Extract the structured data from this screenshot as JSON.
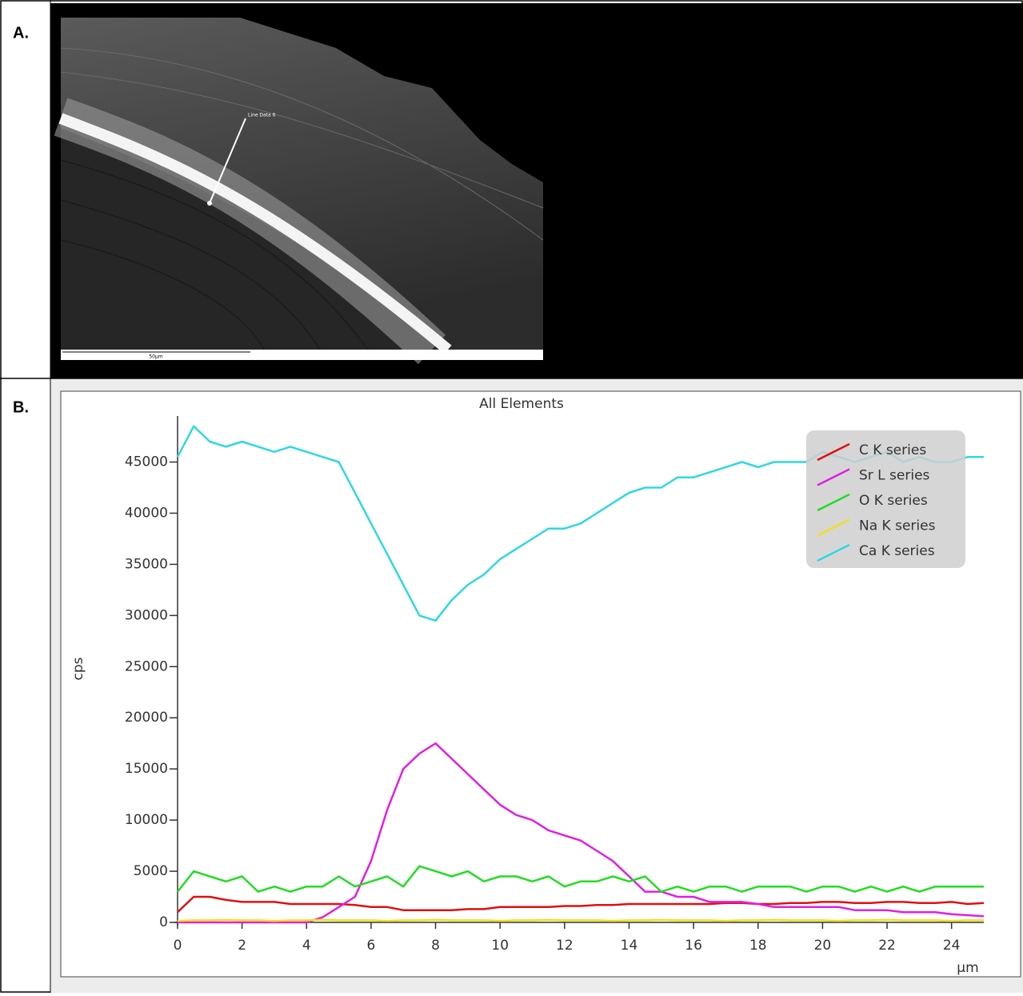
{
  "panel_labels": [
    "A.",
    "B."
  ],
  "image": {
    "annotation": "Line Data 6",
    "scale_bar": "50µm"
  },
  "chart_data": {
    "type": "line",
    "title": "All Elements",
    "y_label": "cps",
    "x_label": "µm",
    "xlim": [
      0,
      25
    ],
    "xticks": [
      0,
      2,
      4,
      6,
      8,
      10,
      12,
      14,
      16,
      18,
      20,
      22,
      24
    ],
    "ylim": [
      0,
      49500
    ],
    "yticks": [
      0,
      5000,
      10000,
      15000,
      20000,
      25000,
      30000,
      35000,
      40000,
      45000
    ],
    "legend": "upper right",
    "x": [
      0,
      0.5,
      1,
      1.5,
      2,
      2.5,
      3,
      3.5,
      4,
      4.5,
      5,
      5.5,
      6,
      6.5,
      7,
      7.5,
      8,
      8.5,
      9,
      9.5,
      10,
      10.5,
      11,
      11.5,
      12,
      12.5,
      13,
      13.5,
      14,
      14.5,
      15,
      15.5,
      16,
      16.5,
      17,
      17.5,
      18,
      18.5,
      19,
      19.5,
      20,
      20.5,
      21,
      21.5,
      22,
      22.5,
      23,
      23.5,
      24,
      24.5,
      25
    ],
    "series": [
      {
        "name": "C K series",
        "color": "#e01010",
        "values": [
          1000,
          2500,
          2500,
          2200,
          2000,
          2000,
          2000,
          1800,
          1800,
          1800,
          1800,
          1700,
          1500,
          1500,
          1200,
          1200,
          1200,
          1200,
          1300,
          1300,
          1500,
          1500,
          1500,
          1500,
          1600,
          1600,
          1700,
          1700,
          1800,
          1800,
          1800,
          1800,
          1800,
          1800,
          1900,
          1900,
          1800,
          1800,
          1900,
          1900,
          2000,
          2000,
          1900,
          1900,
          2000,
          2000,
          1900,
          1900,
          2000,
          1800,
          1900
        ]
      },
      {
        "name": "Sr L series",
        "color": "#e020e0",
        "values": [
          0,
          0,
          0,
          0,
          0,
          0,
          0,
          0,
          0,
          500,
          1500,
          2500,
          6000,
          11000,
          15000,
          16500,
          17500,
          16000,
          14500,
          13000,
          11500,
          10500,
          10000,
          9000,
          8500,
          8000,
          7000,
          6000,
          4500,
          3000,
          3000,
          2500,
          2500,
          2000,
          2000,
          2000,
          1800,
          1500,
          1500,
          1500,
          1500,
          1500,
          1200,
          1200,
          1200,
          1000,
          1000,
          1000,
          800,
          700,
          600
        ]
      },
      {
        "name": "O K series",
        "color": "#22dd22",
        "values": [
          3000,
          5000,
          4500,
          4000,
          4500,
          3000,
          3500,
          3000,
          3500,
          3500,
          4500,
          3500,
          4000,
          4500,
          3500,
          5500,
          5000,
          4500,
          5000,
          4000,
          4500,
          4500,
          4000,
          4500,
          3500,
          4000,
          4000,
          4500,
          4000,
          4500,
          3000,
          3500,
          3000,
          3500,
          3500,
          3000,
          3500,
          3500,
          3500,
          3000,
          3500,
          3500,
          3000,
          3500,
          3000,
          3500,
          3000,
          3500,
          3500,
          3500,
          3500
        ]
      },
      {
        "name": "Na K series",
        "color": "#f0e020",
        "values": [
          150,
          200,
          200,
          250,
          200,
          200,
          150,
          200,
          200,
          250,
          200,
          200,
          200,
          150,
          200,
          200,
          250,
          200,
          200,
          200,
          150,
          200,
          200,
          250,
          200,
          200,
          200,
          150,
          200,
          200,
          250,
          200,
          200,
          200,
          150,
          200,
          200,
          250,
          200,
          200,
          200,
          150,
          200,
          200,
          250,
          200,
          200,
          200,
          150,
          200,
          200
        ]
      },
      {
        "name": "Ca K series",
        "color": "#30d8e0",
        "values": [
          45500,
          48500,
          47000,
          46500,
          47000,
          46500,
          46000,
          46500,
          46000,
          45500,
          45000,
          42000,
          39000,
          36000,
          33000,
          30000,
          29500,
          31500,
          33000,
          34000,
          35500,
          36500,
          37500,
          38500,
          38500,
          39000,
          40000,
          41000,
          42000,
          42500,
          42500,
          43500,
          43500,
          44000,
          44500,
          45000,
          44500,
          45000,
          45000,
          45000,
          46000,
          45500,
          45000,
          45500,
          46000,
          45000,
          45500,
          45000,
          45000,
          45500,
          45500
        ]
      }
    ]
  }
}
